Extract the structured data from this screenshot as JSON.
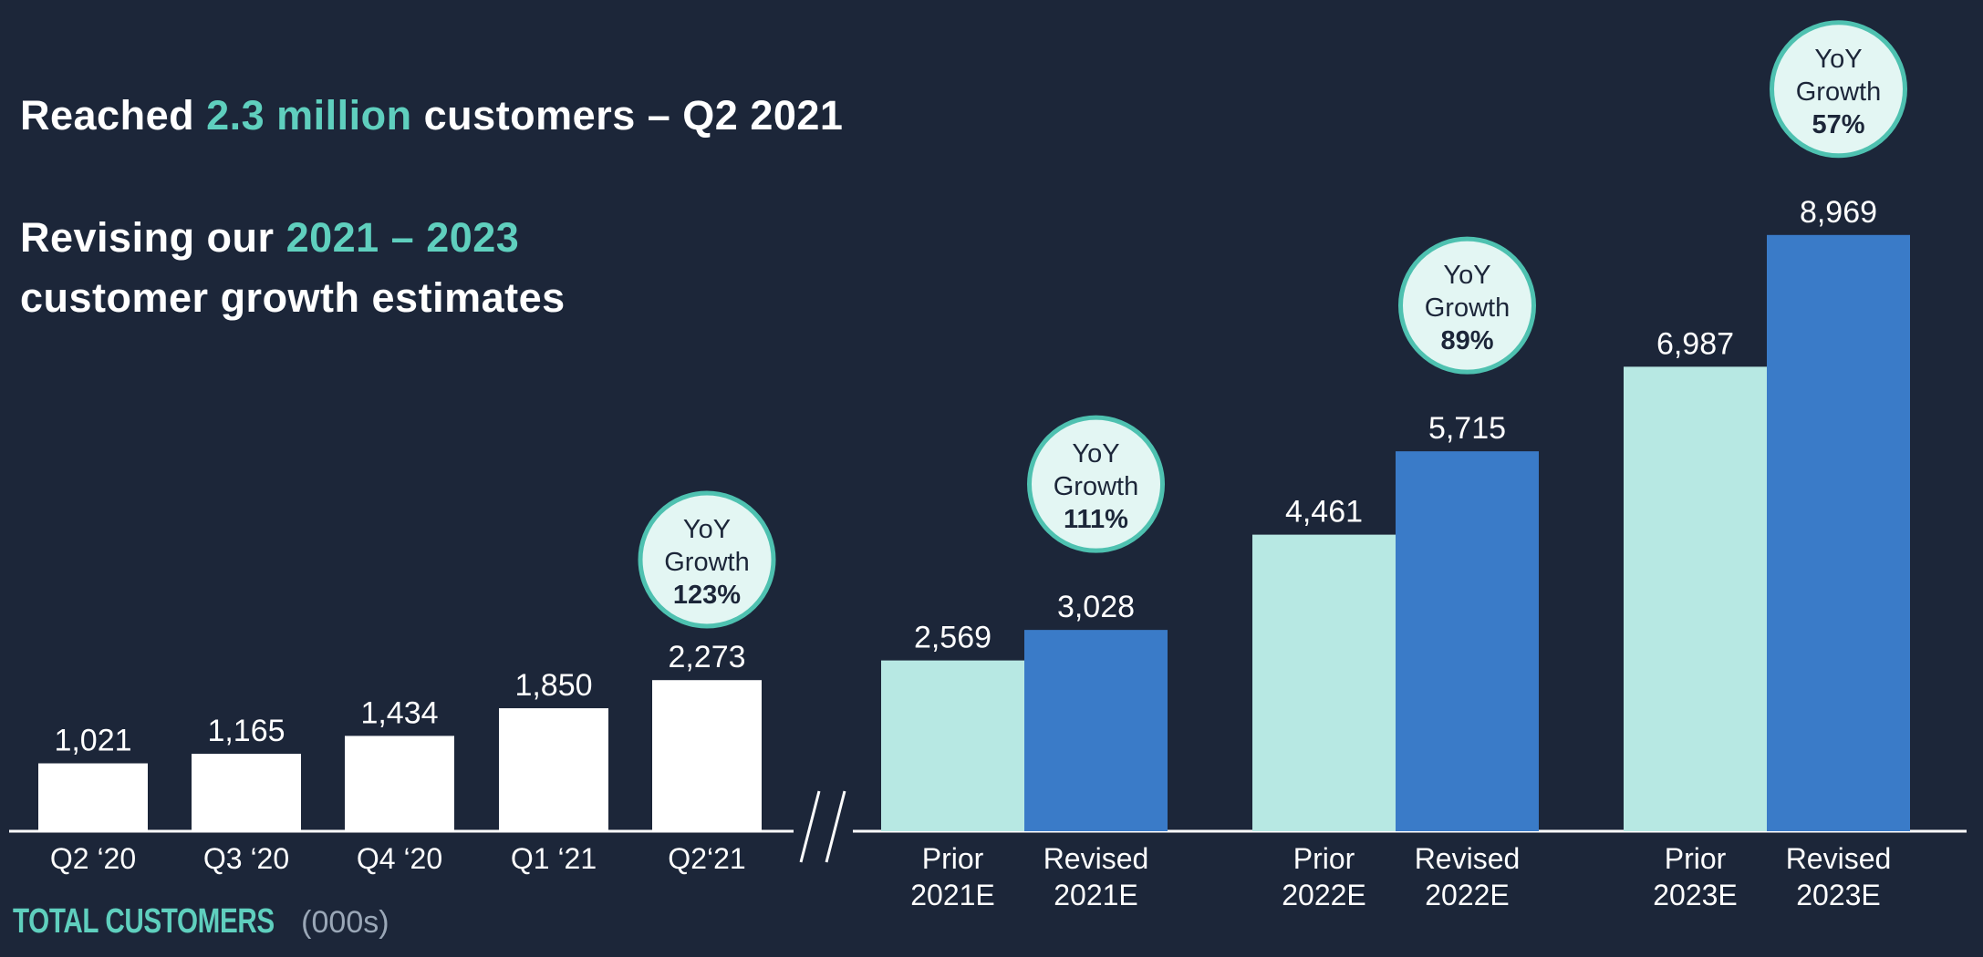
{
  "headline1": {
    "pre": "Reached ",
    "accent": "2.3 million",
    "post": " customers – Q2 2021"
  },
  "headline2": {
    "pre": "Revising our ",
    "accent": "2021 – 2023",
    "line2": "customer growth estimates"
  },
  "footer": {
    "label": "TOTAL CUSTOMERS",
    "units": "(000s)"
  },
  "colors": {
    "background": "#1c2639",
    "historical": "#ffffff",
    "prior": "#b7e8e3",
    "revised": "#3a7bc8",
    "accent": "#5fcfbe",
    "bubble_fill": "#e3f6f3",
    "bubble_stroke": "#4ec1b0"
  },
  "chart_data": {
    "type": "bar",
    "title": "",
    "ylim": [
      0,
      9000
    ],
    "groups": [
      {
        "kind": "historical",
        "bars": [
          {
            "label": [
              "Q2 ‘20"
            ],
            "value": 1021,
            "text": "1,021"
          }
        ]
      },
      {
        "kind": "historical",
        "bars": [
          {
            "label": [
              "Q3 ‘20"
            ],
            "value": 1165,
            "text": "1,165"
          }
        ]
      },
      {
        "kind": "historical",
        "bars": [
          {
            "label": [
              "Q4 ‘20"
            ],
            "value": 1434,
            "text": "1,434"
          }
        ]
      },
      {
        "kind": "historical",
        "bars": [
          {
            "label": [
              "Q1 ‘21"
            ],
            "value": 1850,
            "text": "1,850"
          }
        ]
      },
      {
        "kind": "historical",
        "bars": [
          {
            "label": [
              "Q2‘21"
            ],
            "value": 2273,
            "text": "2,273"
          }
        ],
        "bubble": {
          "lines": [
            "YoY",
            "Growth"
          ],
          "pct": "123%"
        }
      },
      {
        "kind": "estimate",
        "bars": [
          {
            "series": "prior",
            "label": [
              "Prior",
              "2021E"
            ],
            "value": 2569,
            "text": "2,569"
          },
          {
            "series": "revised",
            "label": [
              "Revised",
              "2021E"
            ],
            "value": 3028,
            "text": "3,028"
          }
        ],
        "bubble": {
          "lines": [
            "YoY",
            "Growth"
          ],
          "pct": "111%"
        }
      },
      {
        "kind": "estimate",
        "bars": [
          {
            "series": "prior",
            "label": [
              "Prior",
              "2022E"
            ],
            "value": 4461,
            "text": "4,461"
          },
          {
            "series": "revised",
            "label": [
              "Revised",
              "2022E"
            ],
            "value": 5715,
            "text": "5,715"
          }
        ],
        "bubble": {
          "lines": [
            "YoY",
            "Growth"
          ],
          "pct": "89%"
        }
      },
      {
        "kind": "estimate",
        "bars": [
          {
            "series": "prior",
            "label": [
              "Prior",
              "2023E"
            ],
            "value": 6987,
            "text": "6,987"
          },
          {
            "series": "revised",
            "label": [
              "Revised",
              "2023E"
            ],
            "value": 8969,
            "text": "8,969"
          }
        ],
        "bubble": {
          "lines": [
            "YoY",
            "Growth"
          ],
          "pct": "57%"
        }
      }
    ]
  }
}
